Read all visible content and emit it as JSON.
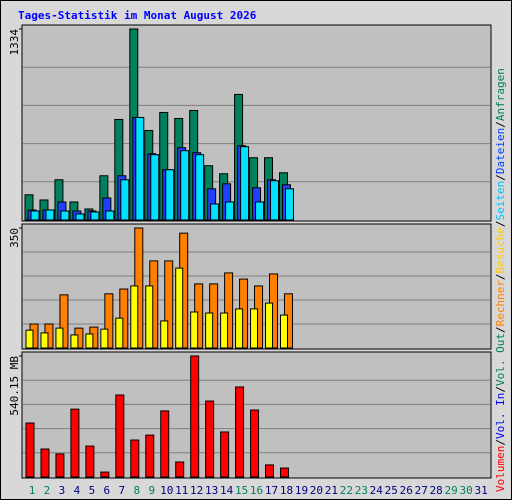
{
  "chart_data": {
    "type": "bar",
    "title": "Tages-Statistik im Monat August 2026",
    "categories": [
      "1",
      "2",
      "3",
      "4",
      "5",
      "6",
      "7",
      "8",
      "9",
      "10",
      "11",
      "12",
      "13",
      "14",
      "15",
      "16",
      "17",
      "18",
      "19",
      "20",
      "21",
      "22",
      "23",
      "24",
      "25",
      "26",
      "27",
      "28",
      "29",
      "30",
      "31"
    ],
    "category_colors": [
      "#00805c",
      "#00805c",
      "#000080",
      "#000080",
      "#000080",
      "#000080",
      "#000080",
      "#00805c",
      "#00805c",
      "#000080",
      "#000080",
      "#000080",
      "#000080",
      "#000080",
      "#00805c",
      "#00805c",
      "#000080",
      "#000080",
      "#000080",
      "#000080",
      "#000080",
      "#00805c",
      "#00805c",
      "#000080",
      "#000080",
      "#000080",
      "#000080",
      "#000080",
      "#00805c",
      "#00805c",
      "#000080"
    ],
    "legend_separator": "/",
    "legend": [
      {
        "name": "Volumen",
        "color": "#ff0000"
      },
      {
        "name": "Vol. In",
        "color": "#0000ff"
      },
      {
        "name": "Vol. Out",
        "color": "#00805c"
      },
      {
        "name": "Rechner",
        "color": "#ff8000"
      },
      {
        "name": "Besuche",
        "color": "#ffcc00"
      },
      {
        "name": "Seiten",
        "color": "#00c0ff"
      },
      {
        "name": "Dateien",
        "color": "#0040ff"
      },
      {
        "name": "Anfragen",
        "color": "#00805c"
      }
    ],
    "grid": true,
    "panels": [
      {
        "ylim": [
          0,
          1334
        ],
        "yticks": [
          1334
        ],
        "gridlines": [
          266.8,
          533.6,
          800.4,
          1067.2
        ],
        "series": [
          {
            "color": "#00805c",
            "offset": -7,
            "width": 8,
            "values": [
              176,
              140,
              281,
              126,
              77,
              309,
              702,
              1334,
              625,
              751,
              709,
              765,
              379,
              323,
              877,
              435,
              435,
              330,
              null,
              null,
              null,
              null,
              null,
              null,
              null,
              null,
              null,
              null,
              null,
              null,
              null
            ]
          },
          {
            "color": "#2040ff",
            "offset": -4,
            "width": 8,
            "values": [
              70,
              70,
              126,
              63,
              63,
              154,
              309,
              716,
              463,
              351,
              505,
              470,
              218,
              253,
              519,
              225,
              281,
              246,
              null,
              null,
              null,
              null,
              null,
              null,
              null,
              null,
              null,
              null,
              null,
              null,
              null
            ]
          },
          {
            "color": "#00e0ff",
            "offset": -1,
            "width": 8,
            "values": [
              63,
              70,
              63,
              42,
              56,
              63,
              281,
              716,
              456,
              351,
              484,
              456,
              112,
              126,
              512,
              126,
              274,
              218,
              null,
              null,
              null,
              null,
              null,
              null,
              null,
              null,
              null,
              null,
              null,
              null,
              null
            ]
          }
        ]
      },
      {
        "ylim": [
          0,
          350
        ],
        "yticks": [
          350
        ],
        "gridlines": [
          70,
          140,
          210,
          280
        ],
        "series": [
          {
            "color": "#ff8000",
            "offset": -2,
            "width": 8,
            "values": [
              70,
              70,
              155,
              58,
              61,
              158,
              172,
              350,
              254,
              254,
              335,
              187,
              187,
              219,
              201,
              181,
              216,
              158,
              null,
              null,
              null,
              null,
              null,
              null,
              null,
              null,
              null,
              null,
              null,
              null,
              null
            ]
          },
          {
            "color": "#ffff00",
            "offset": -6,
            "width": 7,
            "values": [
              52,
              44,
              58,
              38,
              41,
              55,
              87,
              181,
              181,
              79,
              233,
              105,
              102,
              102,
              114,
              114,
              131,
              96,
              null,
              null,
              null,
              null,
              null,
              null,
              null,
              null,
              null,
              null,
              null,
              null,
              null
            ]
          }
        ]
      },
      {
        "ylim": [
          0,
          540.15
        ],
        "yticks": [
          {
            "value": 540.15,
            "label": "540.15 MB"
          }
        ],
        "gridlines": [
          108.03,
          216.06,
          324.09,
          432.12
        ],
        "series": [
          {
            "color": "#ff0000",
            "offset": -6,
            "width": 8,
            "values": [
              241,
              125,
              103,
              303,
              138,
              22,
              366,
              165,
              187,
              295,
              67,
              540.15,
              339,
              201,
              402,
              299,
              54,
              40,
              null,
              null,
              null,
              null,
              null,
              null,
              null,
              null,
              null,
              null,
              null,
              null,
              null
            ]
          }
        ]
      }
    ]
  }
}
